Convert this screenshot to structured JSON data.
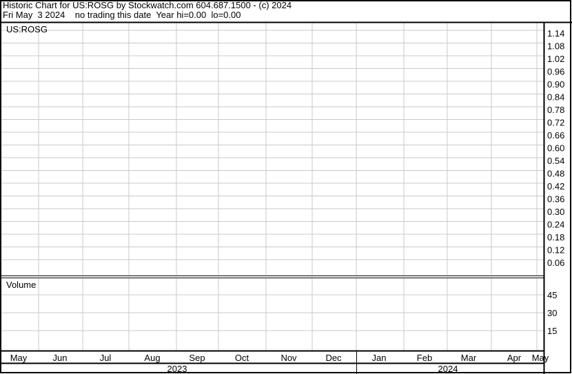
{
  "header": {
    "title": "Historic Chart for US:ROSG by Stockwatch.com 604.687.1500 - (c) 2024",
    "status": "Fri May  3 2024    no trading this date  Year hi=0.00  lo=0.00"
  },
  "colors": {
    "grid": "#c8c8c8",
    "frame": "#000000",
    "background": "#ffffff"
  },
  "chart_data": [
    {
      "type": "line",
      "title": "US:ROSG",
      "y_ticks": [
        "1.14",
        "1.08",
        "1.02",
        "0.96",
        "0.90",
        "0.84",
        "0.78",
        "0.72",
        "0.66",
        "0.60",
        "0.54",
        "0.48",
        "0.42",
        "0.36",
        "0.30",
        "0.24",
        "0.18",
        "0.12",
        "0.06"
      ],
      "ylim": [
        0,
        1.17
      ],
      "series": [],
      "grid": true,
      "y_axis_position": "right"
    },
    {
      "type": "bar",
      "title": "Volume",
      "y_ticks": [
        "45",
        "30",
        "15"
      ],
      "ylim": [
        0,
        60
      ],
      "series": [],
      "grid": true,
      "y_axis_position": "right"
    }
  ],
  "x_axis": {
    "months": [
      "May",
      "Jun",
      "Jul",
      "Aug",
      "Sep",
      "Oct",
      "Nov",
      "Dec",
      "Jan",
      "Feb",
      "Mar",
      "Apr",
      "May"
    ],
    "years": [
      "2023",
      "2024"
    ]
  }
}
